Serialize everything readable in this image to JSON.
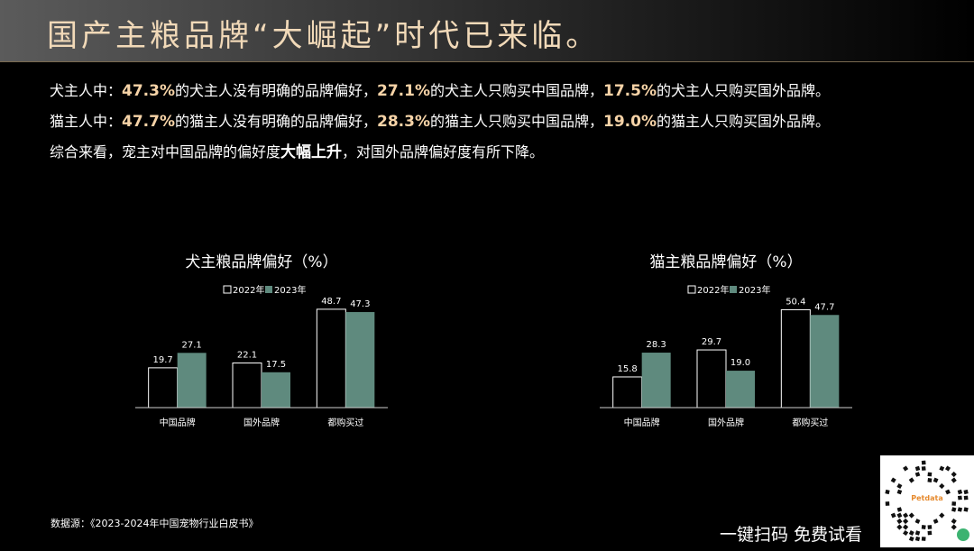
{
  "page": {
    "title": "国产主粮品牌“大崛起”时代已来临。",
    "source": "数据源：《2023-2024年中国宠物行业白皮书》",
    "cta": "一键扫码 免费试看",
    "qr_brand": "Petdata"
  },
  "summary": {
    "dog": {
      "p1": "犬主人中：",
      "v1": "47.3%",
      "p2": "的犬主人没有明确的品牌偏好，",
      "v2": "27.1%",
      "p3": "的犬主人只购买中国品牌，",
      "v3": "17.5%",
      "p4": "的犬主人只购买国外品牌。"
    },
    "cat": {
      "p1": "猫主人中：",
      "v1": "47.7%",
      "p2": "的猫主人没有明确的品牌偏好，",
      "v2": "28.3%",
      "p3": "的猫主人只购买中国品牌，",
      "v3": "19.0%",
      "p4": "的猫主人只购买国外品牌。"
    },
    "overall": {
      "p1": "综合来看，宠主对中国品牌的偏好度",
      "b1": "大幅上升",
      "p2": "，对国外品牌偏好度有所下降。"
    }
  },
  "colors": {
    "series_2022": "#000000",
    "series_2023": "#5f8a7e",
    "accent": "#f6d3a7"
  },
  "chart_data": [
    {
      "type": "bar",
      "title": "犬主粮品牌偏好（%）",
      "categories": [
        "中国品牌",
        "国外品牌",
        "都购买过"
      ],
      "series": [
        {
          "name": "2022年",
          "values": [
            19.7,
            22.1,
            48.7
          ]
        },
        {
          "name": "2023年",
          "values": [
            27.1,
            17.5,
            47.3
          ]
        }
      ],
      "ylim": [
        0,
        50
      ],
      "legend": "top",
      "grid": false
    },
    {
      "type": "bar",
      "title": "猫主粮品牌偏好（%）",
      "categories": [
        "中国品牌",
        "国外品牌",
        "都购买过"
      ],
      "series": [
        {
          "name": "2022年",
          "values": [
            15.8,
            29.7,
            50.4
          ]
        },
        {
          "name": "2023年",
          "values": [
            28.3,
            19.0,
            47.7
          ]
        }
      ],
      "ylim": [
        0,
        52
      ],
      "legend": "top",
      "grid": false
    }
  ]
}
